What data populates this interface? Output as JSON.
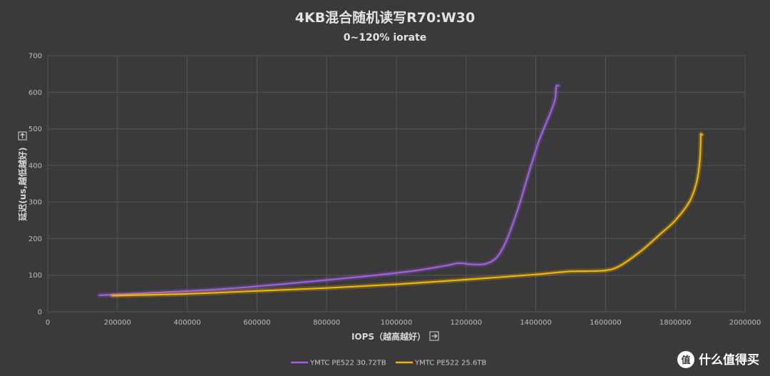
{
  "chart_data": {
    "type": "line",
    "title": "4KB混合随机读写R70:W30",
    "subtitle": "0~120% iorate",
    "xlabel": "IOPS（越高越好）",
    "ylabel": "延迟(us,越低越好)",
    "x_arrow_icon": "arrow-right-box-icon",
    "y_arrow_icon": "arrow-down-box-icon",
    "xlim": [
      0,
      2000000
    ],
    "ylim": [
      0,
      700
    ],
    "x_ticks": [
      0,
      200000,
      400000,
      600000,
      800000,
      1000000,
      1200000,
      1400000,
      1600000,
      1800000,
      2000000
    ],
    "x_tick_labels": [
      "0",
      "200000",
      "400000",
      "600000",
      "800000",
      "1000000",
      "1200000",
      "1400000",
      "1600000",
      "1800000",
      "2000000"
    ],
    "y_ticks": [
      0,
      100,
      200,
      300,
      400,
      500,
      600,
      700
    ],
    "y_tick_labels": [
      "0",
      "100",
      "200",
      "300",
      "400",
      "500",
      "600",
      "700"
    ],
    "grid": true,
    "legend_position": "bottom",
    "series": [
      {
        "name": "YMTC PE522 30.72TB",
        "color": "#a25ee8",
        "points": [
          [
            148000,
            45
          ],
          [
            300000,
            52
          ],
          [
            500000,
            62
          ],
          [
            700000,
            78
          ],
          [
            900000,
            96
          ],
          [
            1050000,
            112
          ],
          [
            1140000,
            126
          ],
          [
            1180000,
            133
          ],
          [
            1210000,
            130
          ],
          [
            1250000,
            130
          ],
          [
            1280000,
            142
          ],
          [
            1300000,
            165
          ],
          [
            1320000,
            205
          ],
          [
            1350000,
            285
          ],
          [
            1380000,
            380
          ],
          [
            1410000,
            470
          ],
          [
            1440000,
            540
          ],
          [
            1455000,
            580
          ],
          [
            1458000,
            612
          ],
          [
            1460000,
            618
          ],
          [
            1465000,
            618
          ]
        ]
      },
      {
        "name": "YMTC PE522 25.6TB",
        "color": "#f4b400",
        "points": [
          [
            185000,
            44
          ],
          [
            400000,
            49
          ],
          [
            600000,
            57
          ],
          [
            800000,
            65
          ],
          [
            1000000,
            75
          ],
          [
            1200000,
            88
          ],
          [
            1400000,
            102
          ],
          [
            1490000,
            110
          ],
          [
            1550000,
            111
          ],
          [
            1600000,
            113
          ],
          [
            1640000,
            125
          ],
          [
            1700000,
            165
          ],
          [
            1760000,
            215
          ],
          [
            1800000,
            250
          ],
          [
            1840000,
            300
          ],
          [
            1860000,
            350
          ],
          [
            1870000,
            410
          ],
          [
            1873000,
            475
          ],
          [
            1873000,
            486
          ],
          [
            1877000,
            484
          ]
        ]
      }
    ]
  },
  "watermark": {
    "text": "什么值得买",
    "logo_glyph": "值",
    "logo_icon": "smzdm-logo-icon"
  }
}
